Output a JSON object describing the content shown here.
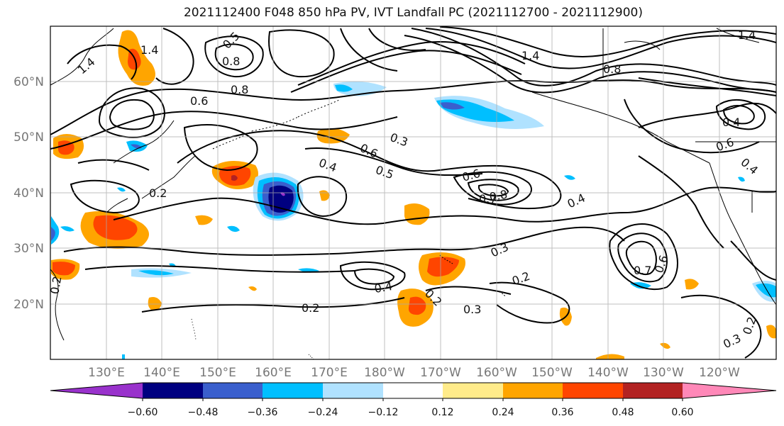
{
  "title": "2021112400 F048 850 hPa PV, IVT Landfall PC (2021112700 - 2021112900)",
  "map": {
    "lat_labels": [
      "60°N",
      "50°N",
      "40°N",
      "30°N",
      "20°N"
    ],
    "lon_labels": [
      "130°E",
      "140°E",
      "150°E",
      "160°E",
      "170°E",
      "180°W",
      "170°W",
      "160°W",
      "150°W",
      "140°W",
      "130°W",
      "120°W"
    ],
    "contour_labels": [
      "1.4",
      "1.4",
      "1.4",
      "1.4",
      "0.8",
      "0.8",
      "0.8",
      "0.6",
      "0.5",
      "0.2",
      "0.6",
      "0.5",
      "0.4",
      "0.3",
      "0.6",
      "0.8",
      "0.7",
      "0.4",
      "0.3",
      "0.2",
      "0.4",
      "0.2",
      "0.3",
      "0.2",
      "0.6",
      "0.7",
      "0.4",
      "0.6",
      "0.4",
      "0.2",
      "0.3",
      "0.2"
    ]
  },
  "colorbar": {
    "tick_labels": [
      "−0.60",
      "−0.48",
      "−0.36",
      "−0.24",
      "−0.12",
      "0.12",
      "0.24",
      "0.36",
      "0.48",
      "0.60"
    ],
    "colors": [
      "#9932cc",
      "#000080",
      "#3a5fcd",
      "#00bfff",
      "#b0e2ff",
      "#ffffff",
      "#ffeb8a",
      "#ffa500",
      "#ff4500",
      "#b22222",
      "#ff88b8"
    ]
  }
}
